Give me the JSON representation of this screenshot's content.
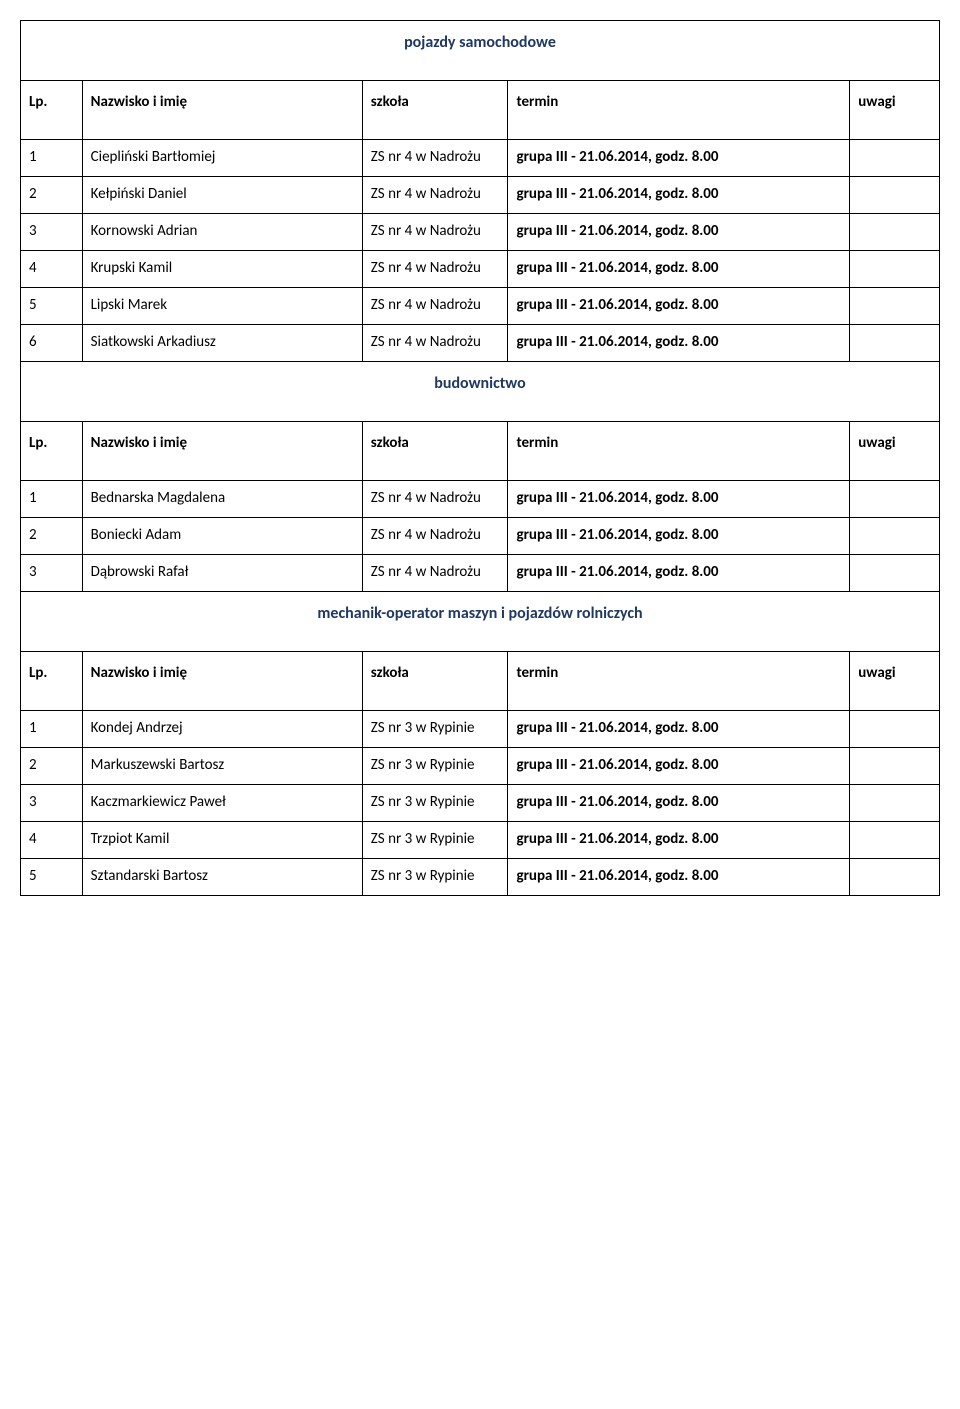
{
  "colors": {
    "heading": "#1f3864",
    "text": "#000000",
    "border": "#000000",
    "background": "#ffffff"
  },
  "columns": {
    "lp": "Lp.",
    "name": "Nazwisko i imię",
    "school": "szkoła",
    "term": "termin",
    "notes": "uwagi"
  },
  "sections": [
    {
      "title": "pojazdy samochodowe",
      "rows": [
        {
          "lp": "1",
          "name": "Ciepliński Bartłomiej",
          "school": "ZS nr 4 w Nadrożu",
          "term": "grupa III - 21.06.2014, godz. 8.00",
          "notes": ""
        },
        {
          "lp": "2",
          "name": "Kełpiński Daniel",
          "school": "ZS nr 4 w Nadrożu",
          "term": "grupa III - 21.06.2014, godz. 8.00",
          "notes": ""
        },
        {
          "lp": "3",
          "name": "Kornowski Adrian",
          "school": "ZS nr 4 w Nadrożu",
          "term": "grupa III - 21.06.2014, godz. 8.00",
          "notes": ""
        },
        {
          "lp": "4",
          "name": "Krupski Kamil",
          "school": "ZS nr 4 w Nadrożu",
          "term": "grupa III - 21.06.2014, godz. 8.00",
          "notes": ""
        },
        {
          "lp": "5",
          "name": "Lipski Marek",
          "school": "ZS nr 4 w Nadrożu",
          "term": "grupa III - 21.06.2014, godz. 8.00",
          "notes": ""
        },
        {
          "lp": "6",
          "name": "Siatkowski Arkadiusz",
          "school": "ZS nr 4 w Nadrożu",
          "term": "grupa III - 21.06.2014, godz. 8.00",
          "notes": ""
        }
      ]
    },
    {
      "title": "budownictwo",
      "rows": [
        {
          "lp": "1",
          "name": "Bednarska Magdalena",
          "school": "ZS nr 4 w Nadrożu",
          "term": "grupa III - 21.06.2014, godz. 8.00",
          "notes": ""
        },
        {
          "lp": "2",
          "name": "Boniecki Adam",
          "school": "ZS nr 4 w Nadrożu",
          "term": "grupa III - 21.06.2014, godz. 8.00",
          "notes": ""
        },
        {
          "lp": "3",
          "name": "Dąbrowski Rafał",
          "school": "ZS nr 4 w Nadrożu",
          "term": "grupa III - 21.06.2014, godz. 8.00",
          "notes": ""
        }
      ]
    },
    {
      "title": "mechanik-operator maszyn i pojazdów rolniczych",
      "rows": [
        {
          "lp": "1",
          "name": "Kondej Andrzej",
          "school": "ZS nr 3 w Rypinie",
          "term": "grupa III - 21.06.2014, godz. 8.00",
          "notes": ""
        },
        {
          "lp": "2",
          "name": "Markuszewski Bartosz",
          "school": "ZS nr 3 w Rypinie",
          "term": "grupa III - 21.06.2014, godz. 8.00",
          "notes": ""
        },
        {
          "lp": "3",
          "name": "Kaczmarkiewicz Paweł",
          "school": "ZS nr 3 w Rypinie",
          "term": "grupa III - 21.06.2014, godz. 8.00",
          "notes": ""
        },
        {
          "lp": "4",
          "name": "Trzpiot Kamil",
          "school": "ZS nr 3 w Rypinie",
          "term": "grupa III - 21.06.2014, godz. 8.00",
          "notes": ""
        },
        {
          "lp": "5",
          "name": "Sztandarski Bartosz",
          "school": "ZS nr 3 w Rypinie",
          "term": "grupa III - 21.06.2014, godz. 8.00",
          "notes": ""
        }
      ]
    }
  ]
}
